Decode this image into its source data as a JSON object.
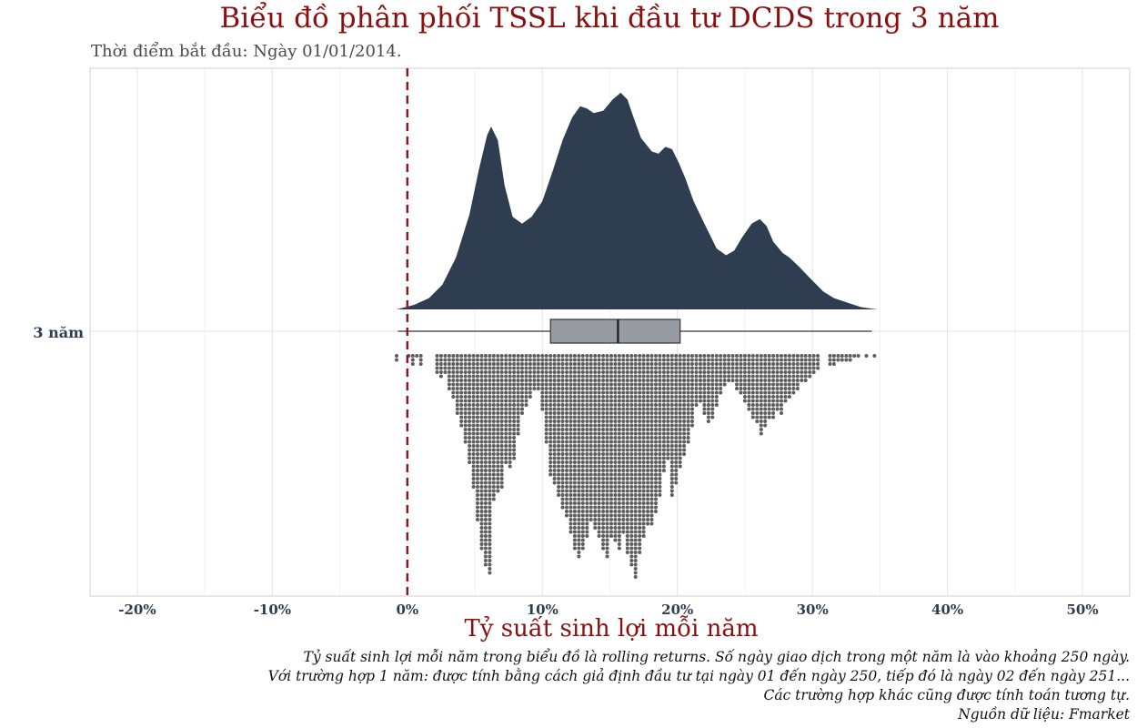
{
  "chart_data": {
    "type": "raincloud",
    "title": "Biểu đồ phân phối TSSL khi đầu tư DCDS trong 3 năm",
    "subtitle": "Thời điểm bắt đầu: Ngày 01/01/2014.",
    "xlabel": "Tỷ suất sinh lợi mỗi năm",
    "ylabel": "",
    "category": "3 năm",
    "xlim": [
      -23.5,
      53.5
    ],
    "x_ticks": [
      -20,
      -10,
      0,
      10,
      20,
      30,
      40,
      50
    ],
    "x_tick_labels": [
      "-20%",
      "-10%",
      "0%",
      "10%",
      "20%",
      "30%",
      "40%",
      "50%"
    ],
    "reference_line": {
      "x": 0,
      "style": "dashed",
      "color": "#8b1a1a"
    },
    "colors": {
      "density": "#2e3e50",
      "box": "#979ca3",
      "dots": "#5d5d5d",
      "title": "#8b0f0f",
      "refline": "#8b1a1a"
    },
    "density": {
      "x": [
        -0.8,
        0.5,
        1.6,
        2.6,
        3.6,
        4.6,
        5.3,
        5.9,
        6.2,
        6.7,
        7.2,
        7.8,
        8.5,
        9.2,
        10.0,
        10.8,
        11.5,
        12.2,
        12.8,
        13.3,
        13.8,
        14.5,
        15.2,
        15.8,
        16.3,
        16.7,
        17.3,
        18.1,
        18.6,
        19.1,
        19.6,
        20.1,
        20.6,
        21.2,
        22.0,
        22.9,
        23.6,
        24.2,
        24.8,
        25.5,
        26.1,
        26.6,
        27.1,
        27.8,
        28.3,
        29.0,
        29.8,
        30.8,
        31.6,
        32.6,
        33.6,
        34.8
      ],
      "y": [
        0.0,
        0.02,
        0.05,
        0.11,
        0.23,
        0.42,
        0.62,
        0.77,
        0.81,
        0.75,
        0.55,
        0.41,
        0.38,
        0.41,
        0.48,
        0.62,
        0.75,
        0.85,
        0.9,
        0.89,
        0.87,
        0.88,
        0.93,
        0.96,
        0.93,
        0.86,
        0.76,
        0.7,
        0.69,
        0.72,
        0.71,
        0.65,
        0.58,
        0.48,
        0.38,
        0.27,
        0.24,
        0.26,
        0.32,
        0.38,
        0.4,
        0.37,
        0.3,
        0.25,
        0.23,
        0.19,
        0.14,
        0.08,
        0.05,
        0.03,
        0.01,
        0.0
      ]
    },
    "boxplot": {
      "min": -0.7,
      "q1": 10.6,
      "median": 15.6,
      "q3": 20.2,
      "max": 34.4
    },
    "dot_columns": {
      "x": [
        -0.8,
        0.1,
        0.4,
        0.7,
        1.0,
        2.2,
        2.5,
        2.8,
        3.1,
        3.4,
        3.7,
        4.0,
        4.3,
        4.6,
        4.9,
        5.2,
        5.5,
        5.8,
        6.1,
        6.4,
        6.7,
        7.0,
        7.3,
        7.6,
        7.9,
        8.2,
        8.5,
        8.8,
        9.1,
        9.4,
        9.7,
        10.0,
        10.3,
        10.6,
        10.9,
        11.2,
        11.5,
        11.8,
        12.1,
        12.4,
        12.7,
        13.0,
        13.3,
        13.6,
        13.9,
        14.2,
        14.5,
        14.8,
        15.1,
        15.4,
        15.7,
        16.0,
        16.3,
        16.6,
        16.9,
        17.2,
        17.5,
        17.8,
        18.1,
        18.4,
        18.7,
        19.0,
        19.3,
        19.6,
        19.9,
        20.2,
        20.5,
        20.8,
        21.1,
        21.4,
        21.7,
        22.0,
        22.3,
        22.6,
        22.9,
        23.2,
        23.5,
        23.8,
        24.1,
        24.4,
        24.7,
        25.0,
        25.3,
        25.6,
        25.9,
        26.2,
        26.5,
        26.8,
        27.1,
        27.4,
        27.7,
        28.0,
        28.3,
        28.6,
        28.9,
        29.2,
        29.5,
        29.8,
        30.1,
        30.4,
        31.3,
        31.6,
        31.9,
        32.2,
        32.5,
        32.8,
        33.1,
        33.4,
        34.0,
        34.6
      ],
      "counts": [
        2,
        1,
        3,
        1,
        3,
        5,
        6,
        5,
        9,
        11,
        15,
        18,
        22,
        27,
        33,
        41,
        48,
        52,
        54,
        36,
        34,
        33,
        27,
        28,
        26,
        20,
        15,
        13,
        11,
        9,
        9,
        14,
        22,
        30,
        32,
        35,
        38,
        40,
        44,
        48,
        50,
        48,
        45,
        41,
        43,
        45,
        48,
        50,
        45,
        46,
        48,
        44,
        49,
        52,
        55,
        49,
        45,
        42,
        42,
        39,
        35,
        29,
        26,
        35,
        32,
        28,
        25,
        22,
        18,
        13,
        12,
        15,
        17,
        16,
        13,
        10,
        8,
        7,
        7,
        9,
        10,
        12,
        14,
        16,
        17,
        20,
        18,
        16,
        16,
        14,
        15,
        12,
        11,
        10,
        9,
        7,
        7,
        6,
        5,
        4,
        3,
        3,
        2,
        2,
        2,
        2,
        1,
        1,
        1,
        1
      ]
    }
  },
  "captions": [
    "Tỷ suất sinh lợi mỗi năm trong biểu đồ là rolling returns. Số ngày giao dịch trong một năm là vào khoảng 250 ngày.",
    "Với trường hợp 1 năm: được tính bằng cách giả định đầu tư tại ngày 01 đến ngày 250, tiếp đó là ngày 02 đến ngày 251...",
    "Các trường hợp khác cũng được tính toán tương tự.",
    "Nguồn dữ liệu: Fmarket"
  ]
}
